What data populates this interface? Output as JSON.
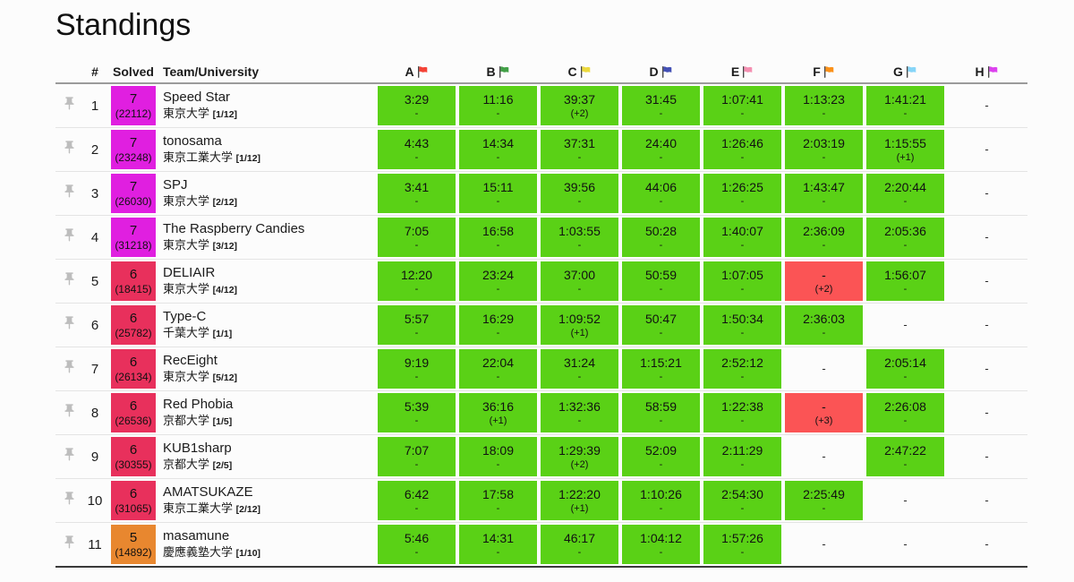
{
  "page": {
    "title": "Standings"
  },
  "colors": {
    "accepted_cell": "#5ad116",
    "wrong_cell": "#fb5455",
    "solved_7_badge": "#e01fe0",
    "solved_6_badge": "#e8305c",
    "solved_5_badge": "#e8872f",
    "pin_icon": "#bdbdbd",
    "flag_pole": "#3a3a3a"
  },
  "table": {
    "headers": {
      "rank": "#",
      "solved": "Solved",
      "team": "Team/University"
    },
    "problem_columns": [
      {
        "letter": "A",
        "flag_color": "#f44336"
      },
      {
        "letter": "B",
        "flag_color": "#42a047"
      },
      {
        "letter": "C",
        "flag_color": "#ecd93e"
      },
      {
        "letter": "D",
        "flag_color": "#4350b5"
      },
      {
        "letter": "E",
        "flag_color": "#f48fb1"
      },
      {
        "letter": "F",
        "flag_color": "#fb9119"
      },
      {
        "letter": "G",
        "flag_color": "#86d5f8"
      },
      {
        "letter": "H",
        "flag_color": "#dc42ee"
      }
    ],
    "rows": [
      {
        "rank": "1",
        "solved": "7",
        "points": "(22112)",
        "badge_color": "#e01fe0",
        "team": "Speed Star",
        "university": "東京大学",
        "membership": "[1/12]",
        "cells": [
          {
            "status": "ac",
            "time": "3:29",
            "sub": "-"
          },
          {
            "status": "ac",
            "time": "11:16",
            "sub": "-"
          },
          {
            "status": "ac",
            "time": "39:37",
            "sub": "(+2)"
          },
          {
            "status": "ac",
            "time": "31:45",
            "sub": "-"
          },
          {
            "status": "ac",
            "time": "1:07:41",
            "sub": "-"
          },
          {
            "status": "ac",
            "time": "1:13:23",
            "sub": "-"
          },
          {
            "status": "ac",
            "time": "1:41:21",
            "sub": "-"
          },
          {
            "status": "none",
            "time": "-"
          }
        ]
      },
      {
        "rank": "2",
        "solved": "7",
        "points": "(23248)",
        "badge_color": "#e01fe0",
        "team": "tonosama",
        "university": "東京工業大学",
        "membership": "[1/12]",
        "cells": [
          {
            "status": "ac",
            "time": "4:43",
            "sub": "-"
          },
          {
            "status": "ac",
            "time": "14:34",
            "sub": "-"
          },
          {
            "status": "ac",
            "time": "37:31",
            "sub": "-"
          },
          {
            "status": "ac",
            "time": "24:40",
            "sub": "-"
          },
          {
            "status": "ac",
            "time": "1:26:46",
            "sub": "-"
          },
          {
            "status": "ac",
            "time": "2:03:19",
            "sub": "-"
          },
          {
            "status": "ac",
            "time": "1:15:55",
            "sub": "(+1)"
          },
          {
            "status": "none",
            "time": "-"
          }
        ]
      },
      {
        "rank": "3",
        "solved": "7",
        "points": "(26030)",
        "badge_color": "#e01fe0",
        "team": "SPJ",
        "university": "東京大学",
        "membership": "[2/12]",
        "cells": [
          {
            "status": "ac",
            "time": "3:41",
            "sub": "-"
          },
          {
            "status": "ac",
            "time": "15:11",
            "sub": "-"
          },
          {
            "status": "ac",
            "time": "39:56",
            "sub": "-"
          },
          {
            "status": "ac",
            "time": "44:06",
            "sub": "-"
          },
          {
            "status": "ac",
            "time": "1:26:25",
            "sub": "-"
          },
          {
            "status": "ac",
            "time": "1:43:47",
            "sub": "-"
          },
          {
            "status": "ac",
            "time": "2:20:44",
            "sub": "-"
          },
          {
            "status": "none",
            "time": "-"
          }
        ]
      },
      {
        "rank": "4",
        "solved": "7",
        "points": "(31218)",
        "badge_color": "#e01fe0",
        "team": "The Raspberry Candies",
        "university": "東京大学",
        "membership": "[3/12]",
        "cells": [
          {
            "status": "ac",
            "time": "7:05",
            "sub": "-"
          },
          {
            "status": "ac",
            "time": "16:58",
            "sub": "-"
          },
          {
            "status": "ac",
            "time": "1:03:55",
            "sub": "-"
          },
          {
            "status": "ac",
            "time": "50:28",
            "sub": "-"
          },
          {
            "status": "ac",
            "time": "1:40:07",
            "sub": "-"
          },
          {
            "status": "ac",
            "time": "2:36:09",
            "sub": "-"
          },
          {
            "status": "ac",
            "time": "2:05:36",
            "sub": "-"
          },
          {
            "status": "none",
            "time": "-"
          }
        ]
      },
      {
        "rank": "5",
        "solved": "6",
        "points": "(18415)",
        "badge_color": "#e8305c",
        "team": "DELIAIR",
        "university": "東京大学",
        "membership": "[4/12]",
        "cells": [
          {
            "status": "ac",
            "time": "12:20",
            "sub": "-"
          },
          {
            "status": "ac",
            "time": "23:24",
            "sub": "-"
          },
          {
            "status": "ac",
            "time": "37:00",
            "sub": "-"
          },
          {
            "status": "ac",
            "time": "50:59",
            "sub": "-"
          },
          {
            "status": "ac",
            "time": "1:07:05",
            "sub": "-"
          },
          {
            "status": "wa",
            "time": "-",
            "sub": "(+2)"
          },
          {
            "status": "ac",
            "time": "1:56:07",
            "sub": "-"
          },
          {
            "status": "none",
            "time": "-"
          }
        ]
      },
      {
        "rank": "6",
        "solved": "6",
        "points": "(25782)",
        "badge_color": "#e8305c",
        "team": "Type-C",
        "university": "千葉大学",
        "membership": "[1/1]",
        "cells": [
          {
            "status": "ac",
            "time": "5:57",
            "sub": "-"
          },
          {
            "status": "ac",
            "time": "16:29",
            "sub": "-"
          },
          {
            "status": "ac",
            "time": "1:09:52",
            "sub": "(+1)"
          },
          {
            "status": "ac",
            "time": "50:47",
            "sub": "-"
          },
          {
            "status": "ac",
            "time": "1:50:34",
            "sub": "-"
          },
          {
            "status": "ac",
            "time": "2:36:03",
            "sub": "-"
          },
          {
            "status": "none",
            "time": "-"
          },
          {
            "status": "none",
            "time": "-"
          }
        ]
      },
      {
        "rank": "7",
        "solved": "6",
        "points": "(26134)",
        "badge_color": "#e8305c",
        "team": "RecEight",
        "university": "東京大学",
        "membership": "[5/12]",
        "cells": [
          {
            "status": "ac",
            "time": "9:19",
            "sub": "-"
          },
          {
            "status": "ac",
            "time": "22:04",
            "sub": "-"
          },
          {
            "status": "ac",
            "time": "31:24",
            "sub": "-"
          },
          {
            "status": "ac",
            "time": "1:15:21",
            "sub": "-"
          },
          {
            "status": "ac",
            "time": "2:52:12",
            "sub": "-"
          },
          {
            "status": "none",
            "time": "-"
          },
          {
            "status": "ac",
            "time": "2:05:14",
            "sub": "-"
          },
          {
            "status": "none",
            "time": "-"
          }
        ]
      },
      {
        "rank": "8",
        "solved": "6",
        "points": "(26536)",
        "badge_color": "#e8305c",
        "team": "Red Phobia",
        "university": "京都大学",
        "membership": "[1/5]",
        "cells": [
          {
            "status": "ac",
            "time": "5:39",
            "sub": "-"
          },
          {
            "status": "ac",
            "time": "36:16",
            "sub": "(+1)"
          },
          {
            "status": "ac",
            "time": "1:32:36",
            "sub": "-"
          },
          {
            "status": "ac",
            "time": "58:59",
            "sub": "-"
          },
          {
            "status": "ac",
            "time": "1:22:38",
            "sub": "-"
          },
          {
            "status": "wa",
            "time": "-",
            "sub": "(+3)"
          },
          {
            "status": "ac",
            "time": "2:26:08",
            "sub": "-"
          },
          {
            "status": "none",
            "time": "-"
          }
        ]
      },
      {
        "rank": "9",
        "solved": "6",
        "points": "(30355)",
        "badge_color": "#e8305c",
        "team": "KUB1sharp",
        "university": "京都大学",
        "membership": "[2/5]",
        "cells": [
          {
            "status": "ac",
            "time": "7:07",
            "sub": "-"
          },
          {
            "status": "ac",
            "time": "18:09",
            "sub": "-"
          },
          {
            "status": "ac",
            "time": "1:29:39",
            "sub": "(+2)"
          },
          {
            "status": "ac",
            "time": "52:09",
            "sub": "-"
          },
          {
            "status": "ac",
            "time": "2:11:29",
            "sub": "-"
          },
          {
            "status": "none",
            "time": "-"
          },
          {
            "status": "ac",
            "time": "2:47:22",
            "sub": "-"
          },
          {
            "status": "none",
            "time": "-"
          }
        ]
      },
      {
        "rank": "10",
        "solved": "6",
        "points": "(31065)",
        "badge_color": "#e8305c",
        "team": "AMATSUKAZE",
        "university": "東京工業大学",
        "membership": "[2/12]",
        "cells": [
          {
            "status": "ac",
            "time": "6:42",
            "sub": "-"
          },
          {
            "status": "ac",
            "time": "17:58",
            "sub": "-"
          },
          {
            "status": "ac",
            "time": "1:22:20",
            "sub": "(+1)"
          },
          {
            "status": "ac",
            "time": "1:10:26",
            "sub": "-"
          },
          {
            "status": "ac",
            "time": "2:54:30",
            "sub": "-"
          },
          {
            "status": "ac",
            "time": "2:25:49",
            "sub": "-"
          },
          {
            "status": "none",
            "time": "-"
          },
          {
            "status": "none",
            "time": "-"
          }
        ]
      },
      {
        "rank": "11",
        "solved": "5",
        "points": "(14892)",
        "badge_color": "#e8872f",
        "team": "masamune",
        "university": "慶應義塾大学",
        "membership": "[1/10]",
        "cells": [
          {
            "status": "ac",
            "time": "5:46",
            "sub": "-"
          },
          {
            "status": "ac",
            "time": "14:31",
            "sub": "-"
          },
          {
            "status": "ac",
            "time": "46:17",
            "sub": "-"
          },
          {
            "status": "ac",
            "time": "1:04:12",
            "sub": "-"
          },
          {
            "status": "ac",
            "time": "1:57:26",
            "sub": "-"
          },
          {
            "status": "none",
            "time": "-"
          },
          {
            "status": "none",
            "time": "-"
          },
          {
            "status": "none",
            "time": "-"
          }
        ]
      }
    ]
  }
}
